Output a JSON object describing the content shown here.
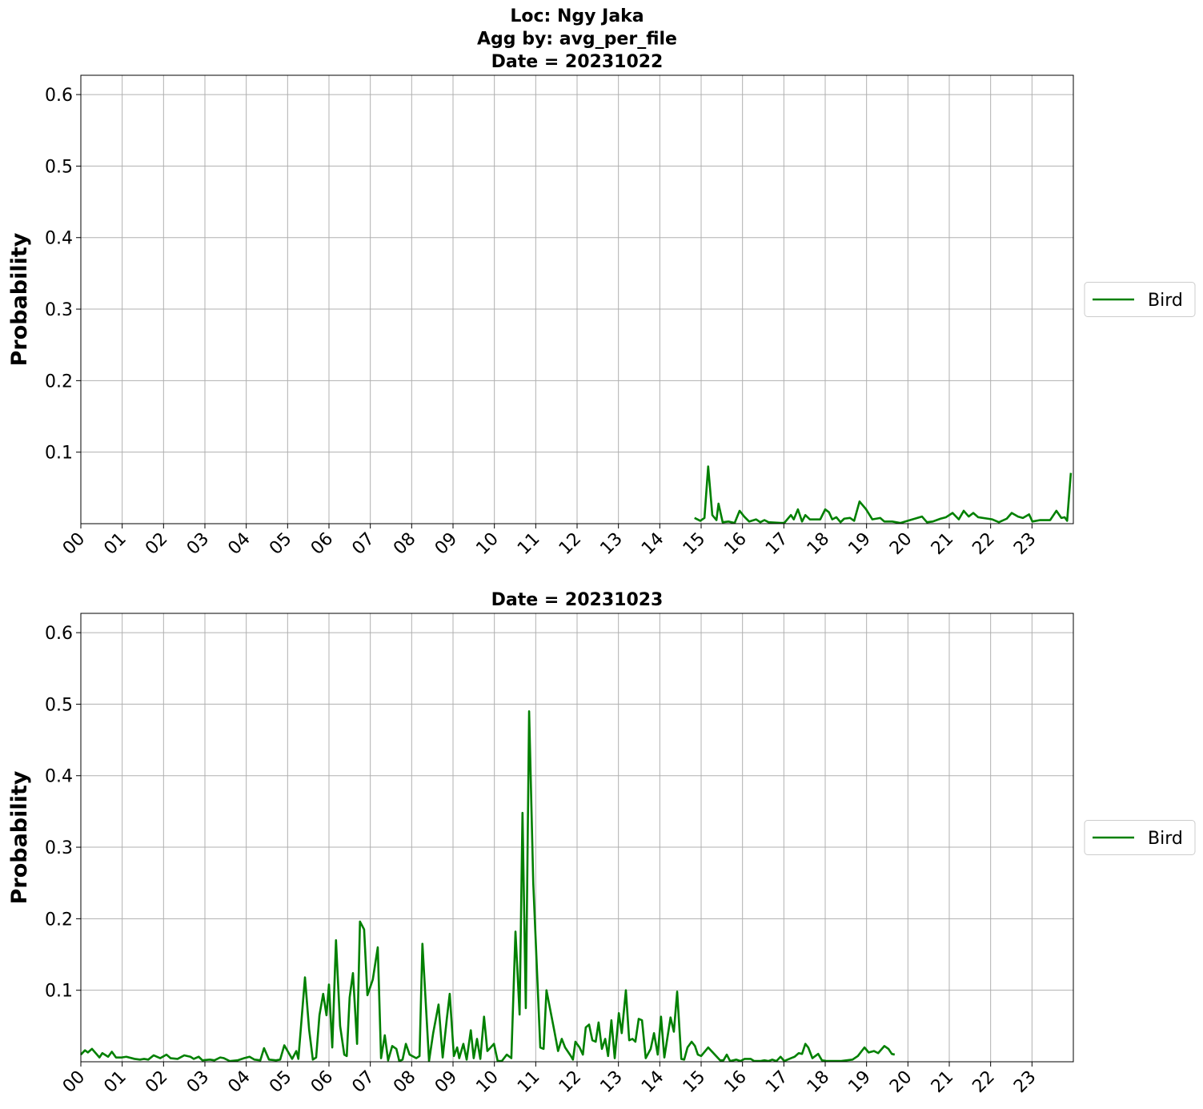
{
  "chart_data": [
    {
      "type": "line",
      "title": [
        "Loc: Ngy Jaka",
        "Agg by: avg_per_file",
        "Date = 20231022"
      ],
      "ylabel": "Probability",
      "xlim": [
        0,
        24
      ],
      "ylim": [
        0,
        0.627
      ],
      "xticks": [
        {
          "value": 0,
          "label": "00"
        },
        {
          "value": 1,
          "label": "01"
        },
        {
          "value": 2,
          "label": "02"
        },
        {
          "value": 3,
          "label": "03"
        },
        {
          "value": 4,
          "label": "04"
        },
        {
          "value": 5,
          "label": "05"
        },
        {
          "value": 6,
          "label": "06"
        },
        {
          "value": 7,
          "label": "07"
        },
        {
          "value": 8,
          "label": "08"
        },
        {
          "value": 9,
          "label": "09"
        },
        {
          "value": 10,
          "label": "10"
        },
        {
          "value": 11,
          "label": "11"
        },
        {
          "value": 12,
          "label": "12"
        },
        {
          "value": 13,
          "label": "13"
        },
        {
          "value": 14,
          "label": "14"
        },
        {
          "value": 15,
          "label": "15"
        },
        {
          "value": 16,
          "label": "16"
        },
        {
          "value": 17,
          "label": "17"
        },
        {
          "value": 18,
          "label": "18"
        },
        {
          "value": 19,
          "label": "19"
        },
        {
          "value": 20,
          "label": "20"
        },
        {
          "value": 21,
          "label": "21"
        },
        {
          "value": 22,
          "label": "22"
        },
        {
          "value": 23,
          "label": "23"
        }
      ],
      "yticks": [
        0.1,
        0.2,
        0.3,
        0.4,
        0.5,
        0.6
      ],
      "grid": true,
      "legend": "right",
      "series": [
        {
          "name": "Bird",
          "color": "#008000",
          "x": [
            14.84,
            14.98,
            15.08,
            15.17,
            15.27,
            15.37,
            15.42,
            15.52,
            15.66,
            15.81,
            15.93,
            16.04,
            16.16,
            16.33,
            16.43,
            16.53,
            16.63,
            16.92,
            17.01,
            17.17,
            17.24,
            17.34,
            17.44,
            17.52,
            17.63,
            17.88,
            18.0,
            18.09,
            18.17,
            18.27,
            18.37,
            18.46,
            18.6,
            18.7,
            18.83,
            18.99,
            19.14,
            19.33,
            19.43,
            19.62,
            19.82,
            20.11,
            20.34,
            20.46,
            20.6,
            20.79,
            20.92,
            21.08,
            21.23,
            21.35,
            21.47,
            21.58,
            21.7,
            22.04,
            22.2,
            22.39,
            22.51,
            22.66,
            22.78,
            22.93,
            23.01,
            23.2,
            23.44,
            23.59,
            23.71,
            23.79,
            23.85,
            23.94
          ],
          "values": [
            0.008,
            0.004,
            0.008,
            0.08,
            0.012,
            0.005,
            0.028,
            0.002,
            0.003,
            0.001,
            0.018,
            0.01,
            0.003,
            0.006,
            0.002,
            0.005,
            0.002,
            0.001,
            0.001,
            0.012,
            0.006,
            0.02,
            0.003,
            0.012,
            0.006,
            0.006,
            0.02,
            0.016,
            0.006,
            0.009,
            0.002,
            0.007,
            0.008,
            0.004,
            0.031,
            0.02,
            0.006,
            0.008,
            0.003,
            0.003,
            0.001,
            0.006,
            0.01,
            0.002,
            0.003,
            0.007,
            0.009,
            0.015,
            0.006,
            0.018,
            0.01,
            0.015,
            0.009,
            0.006,
            0.002,
            0.007,
            0.015,
            0.01,
            0.008,
            0.013,
            0.003,
            0.005,
            0.005,
            0.018,
            0.008,
            0.009,
            0.004,
            0.071
          ]
        }
      ]
    },
    {
      "type": "line",
      "title": [
        "Date = 20231023"
      ],
      "ylabel": "Probability",
      "xlim": [
        0,
        24
      ],
      "ylim": [
        0,
        0.627
      ],
      "xticks": [
        {
          "value": 0,
          "label": "00"
        },
        {
          "value": 1,
          "label": "01"
        },
        {
          "value": 2,
          "label": "02"
        },
        {
          "value": 3,
          "label": "03"
        },
        {
          "value": 4,
          "label": "04"
        },
        {
          "value": 5,
          "label": "05"
        },
        {
          "value": 6,
          "label": "06"
        },
        {
          "value": 7,
          "label": "07"
        },
        {
          "value": 8,
          "label": "08"
        },
        {
          "value": 9,
          "label": "09"
        },
        {
          "value": 10,
          "label": "10"
        },
        {
          "value": 11,
          "label": "11"
        },
        {
          "value": 12,
          "label": "12"
        },
        {
          "value": 13,
          "label": "13"
        },
        {
          "value": 14,
          "label": "14"
        },
        {
          "value": 15,
          "label": "15"
        },
        {
          "value": 16,
          "label": "16"
        },
        {
          "value": 17,
          "label": "17"
        },
        {
          "value": 18,
          "label": "18"
        },
        {
          "value": 19,
          "label": "19"
        },
        {
          "value": 20,
          "label": "20"
        },
        {
          "value": 21,
          "label": "21"
        },
        {
          "value": 22,
          "label": "22"
        },
        {
          "value": 23,
          "label": "23"
        }
      ],
      "yticks": [
        0.1,
        0.2,
        0.3,
        0.4,
        0.5,
        0.6
      ],
      "grid": true,
      "legend": "right",
      "series": [
        {
          "name": "Bird",
          "color": "#008000",
          "x": [
            0,
            0.1,
            0.17,
            0.27,
            0.45,
            0.52,
            0.66,
            0.75,
            0.85,
            0.99,
            1.1,
            1.3,
            1.43,
            1.53,
            1.63,
            1.76,
            1.92,
            2.07,
            2.17,
            2.34,
            2.5,
            2.65,
            2.73,
            2.85,
            2.94,
            3.12,
            3.23,
            3.37,
            3.46,
            3.6,
            3.79,
            3.95,
            4.08,
            4.2,
            4.34,
            4.43,
            4.55,
            4.72,
            4.82,
            4.92,
            5.01,
            5.11,
            5.21,
            5.26,
            5.42,
            5.52,
            5.61,
            5.69,
            5.77,
            5.86,
            5.94,
            6.0,
            6.08,
            6.17,
            6.27,
            6.37,
            6.43,
            6.5,
            6.58,
            6.68,
            6.75,
            6.85,
            6.93,
            7.06,
            7.18,
            7.26,
            7.35,
            7.43,
            7.53,
            7.63,
            7.7,
            7.78,
            7.86,
            7.95,
            8.11,
            8.19,
            8.26,
            8.42,
            8.52,
            8.65,
            8.75,
            8.85,
            8.92,
            9.02,
            9.1,
            9.15,
            9.25,
            9.33,
            9.43,
            9.5,
            9.58,
            9.66,
            9.75,
            9.83,
            9.99,
            10.08,
            10.18,
            10.3,
            10.41,
            10.51,
            10.61,
            10.68,
            10.76,
            10.84,
            10.94,
            11.11,
            11.19,
            11.26,
            11.46,
            11.54,
            11.63,
            11.71,
            11.85,
            11.9,
            11.96,
            12.06,
            12.14,
            12.21,
            12.29,
            12.37,
            12.45,
            12.52,
            12.6,
            12.68,
            12.75,
            12.83,
            12.91,
            13.01,
            13.08,
            13.18,
            13.26,
            13.34,
            13.41,
            13.49,
            13.57,
            13.66,
            13.78,
            13.86,
            13.95,
            14.03,
            14.11,
            14.26,
            14.34,
            14.42,
            14.52,
            14.59,
            14.67,
            14.77,
            14.85,
            14.92,
            15.0,
            15.17,
            15.33,
            15.46,
            15.54,
            15.62,
            15.7,
            15.85,
            15.95,
            16.05,
            16.2,
            16.28,
            16.43,
            16.53,
            16.63,
            16.72,
            16.82,
            16.92,
            17.01,
            17.17,
            17.26,
            17.36,
            17.44,
            17.52,
            17.59,
            17.69,
            17.83,
            17.92,
            18.04,
            18.37,
            18.66,
            18.79,
            18.95,
            19.05,
            19.18,
            19.28,
            19.43,
            19.53,
            19.61,
            19.68
          ],
          "values": [
            0.01,
            0.016,
            0.013,
            0.018,
            0.006,
            0.012,
            0.007,
            0.014,
            0.006,
            0.006,
            0.007,
            0.004,
            0.003,
            0.004,
            0.003,
            0.009,
            0.005,
            0.01,
            0.005,
            0.004,
            0.009,
            0.007,
            0.004,
            0.007,
            0.002,
            0.003,
            0.002,
            0.006,
            0.005,
            0.001,
            0.002,
            0.005,
            0.007,
            0.003,
            0.002,
            0.019,
            0.003,
            0.002,
            0.003,
            0.023,
            0.014,
            0.004,
            0.015,
            0.004,
            0.118,
            0.045,
            0.003,
            0.006,
            0.065,
            0.095,
            0.065,
            0.108,
            0.02,
            0.17,
            0.05,
            0.01,
            0.008,
            0.09,
            0.124,
            0.025,
            0.196,
            0.185,
            0.093,
            0.115,
            0.16,
            0.005,
            0.037,
            0.002,
            0.022,
            0.018,
            0.001,
            0.003,
            0.025,
            0.01,
            0.005,
            0.008,
            0.165,
            0.001,
            0.04,
            0.08,
            0.006,
            0.06,
            0.095,
            0.008,
            0.02,
            0.005,
            0.025,
            0.003,
            0.044,
            0.005,
            0.032,
            0.004,
            0.063,
            0.015,
            0.025,
            0.001,
            0.001,
            0.01,
            0.005,
            0.182,
            0.066,
            0.348,
            0.075,
            0.49,
            0.25,
            0.02,
            0.018,
            0.1,
            0.04,
            0.015,
            0.032,
            0.02,
            0.008,
            0.003,
            0.028,
            0.02,
            0.01,
            0.048,
            0.052,
            0.03,
            0.028,
            0.055,
            0.018,
            0.032,
            0.008,
            0.058,
            0.005,
            0.068,
            0.04,
            0.1,
            0.03,
            0.032,
            0.028,
            0.06,
            0.058,
            0.005,
            0.018,
            0.04,
            0.01,
            0.063,
            0.006,
            0.062,
            0.042,
            0.098,
            0.004,
            0.003,
            0.02,
            0.028,
            0.022,
            0.01,
            0.008,
            0.02,
            0.01,
            0.002,
            0.002,
            0.01,
            0.001,
            0.003,
            0.001,
            0.004,
            0.004,
            0.001,
            0.001,
            0.002,
            0.001,
            0.003,
            0.001,
            0.007,
            0.001,
            0.005,
            0.007,
            0.012,
            0.011,
            0.025,
            0.02,
            0.005,
            0.011,
            0.002,
            0.001,
            0.001,
            0.003,
            0.008,
            0.02,
            0.013,
            0.015,
            0.012,
            0.022,
            0.018,
            0.011,
            0.01
          ]
        }
      ]
    }
  ]
}
